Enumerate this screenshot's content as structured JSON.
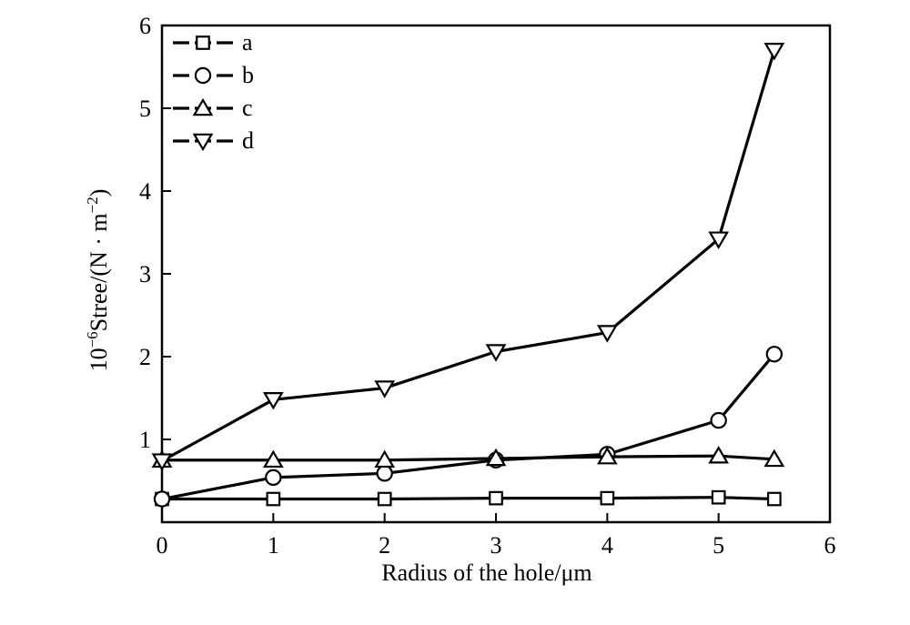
{
  "chart_data": {
    "type": "line",
    "xlabel": "Radius of the hole/μm",
    "ylabel": {
      "prefix": "10",
      "prefix_exp": "−6",
      "main": "Stree/(N · m",
      "unit_exp": "−2",
      "suffix": ")"
    },
    "xlim": [
      0,
      6
    ],
    "ylim": [
      0,
      6
    ],
    "xticks": [
      0,
      1,
      2,
      3,
      4,
      5,
      6
    ],
    "yticks": [
      1,
      2,
      3,
      4,
      5,
      6
    ],
    "grid": false,
    "legend_position": "top-left",
    "series": [
      {
        "name": "a",
        "marker": "square",
        "x": [
          0,
          1,
          2,
          3,
          4,
          5,
          5.5
        ],
        "y": [
          0.28,
          0.28,
          0.28,
          0.29,
          0.29,
          0.3,
          0.28
        ]
      },
      {
        "name": "b",
        "marker": "circle",
        "x": [
          0,
          1,
          2,
          3,
          4,
          5,
          5.5
        ],
        "y": [
          0.28,
          0.54,
          0.59,
          0.75,
          0.82,
          1.23,
          2.03
        ]
      },
      {
        "name": "c",
        "marker": "triangle-up",
        "x": [
          0,
          1,
          2,
          3,
          4,
          5,
          5.5
        ],
        "y": [
          0.75,
          0.75,
          0.75,
          0.77,
          0.79,
          0.8,
          0.76
        ]
      },
      {
        "name": "d",
        "marker": "triangle-down",
        "x": [
          0,
          1,
          2,
          3,
          4,
          5,
          5.5
        ],
        "y": [
          0.74,
          1.48,
          1.62,
          2.06,
          2.29,
          3.42,
          5.7
        ]
      }
    ]
  }
}
